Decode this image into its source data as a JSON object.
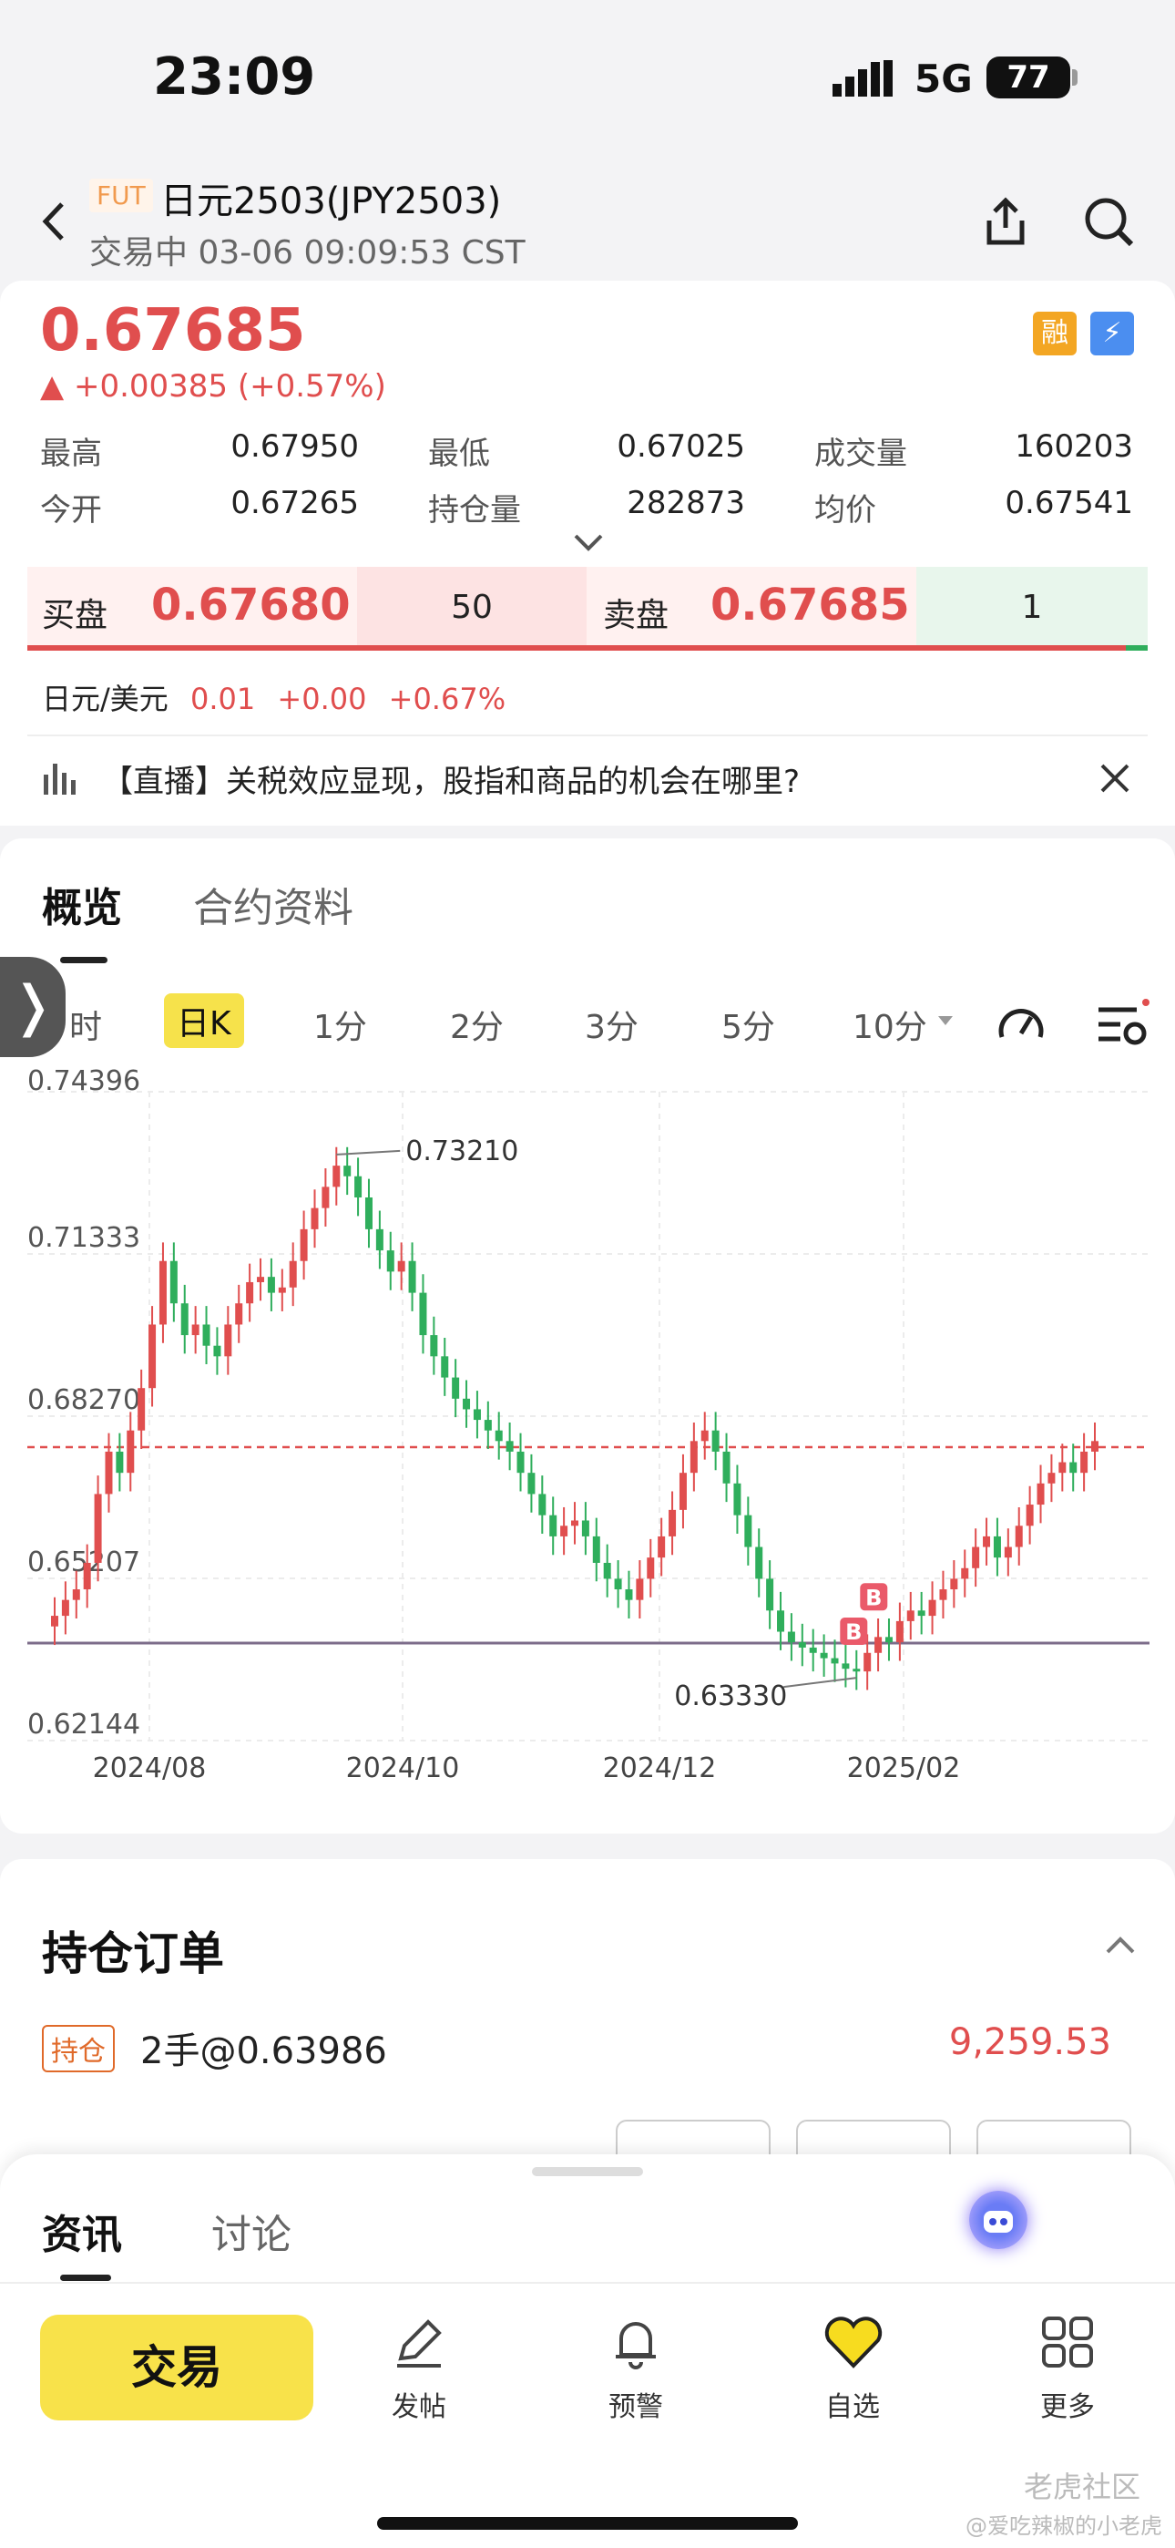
{
  "status": {
    "time": "23:09",
    "network": "5G",
    "battery": "77"
  },
  "header": {
    "badge": "FUT",
    "title": "日元2503(JPY2503)",
    "subtitle": "交易中 03-06 09:09:53 CST"
  },
  "quote": {
    "price": "0.67685",
    "change": "▲ +0.00385 (+0.57%)",
    "badge_margin": "融",
    "badge_level": "⚡",
    "stats": [
      {
        "label": "最高",
        "value": "0.67950"
      },
      {
        "label": "最低",
        "value": "0.67025"
      },
      {
        "label": "成交量",
        "value": "160203"
      },
      {
        "label": "今开",
        "value": "0.67265"
      },
      {
        "label": "持仓量",
        "value": "282873"
      },
      {
        "label": "均价",
        "value": "0.67541"
      }
    ]
  },
  "orderbook": {
    "bid_label": "买盘",
    "bid_price": "0.67680",
    "bid_qty": "50",
    "ask_label": "卖盘",
    "ask_price": "0.67685",
    "ask_qty": "1"
  },
  "related": {
    "name": "日元/美元",
    "price": "0.01",
    "change": "+0.00",
    "pct": "+0.67%"
  },
  "news": {
    "text": "【直播】关税效应显现，股指和商品的机会在哪里?"
  },
  "tabs": {
    "overview": "概览",
    "contract": "合约资料"
  },
  "periods": [
    "时",
    "日K",
    "1分",
    "2分",
    "3分",
    "5分",
    "10分"
  ],
  "chart_data": {
    "type": "candlestick",
    "title": "",
    "y_ticks": [
      "0.74396",
      "0.71333",
      "0.68270",
      "0.65207",
      "0.62144"
    ],
    "x_ticks": [
      "2024/08",
      "2024/10",
      "2024/12",
      "2025/02"
    ],
    "ylim": [
      0.62144,
      0.74396
    ],
    "annotations": {
      "high": "0.73210",
      "low": "0.63330"
    },
    "current_price_line": 0.67685,
    "position_line": 0.63986,
    "markers": [
      "B",
      "B"
    ],
    "close_series": [
      0.645,
      0.648,
      0.65,
      0.655,
      0.668,
      0.676,
      0.672,
      0.68,
      0.688,
      0.7,
      0.712,
      0.704,
      0.698,
      0.7,
      0.696,
      0.694,
      0.7,
      0.704,
      0.708,
      0.709,
      0.706,
      0.707,
      0.712,
      0.718,
      0.722,
      0.726,
      0.73,
      0.728,
      0.724,
      0.718,
      0.714,
      0.71,
      0.712,
      0.706,
      0.698,
      0.694,
      0.69,
      0.686,
      0.684,
      0.682,
      0.68,
      0.678,
      0.676,
      0.672,
      0.668,
      0.664,
      0.66,
      0.662,
      0.663,
      0.66,
      0.655,
      0.652,
      0.65,
      0.648,
      0.652,
      0.656,
      0.66,
      0.665,
      0.672,
      0.678,
      0.68,
      0.676,
      0.67,
      0.664,
      0.658,
      0.652,
      0.646,
      0.642,
      0.64,
      0.639,
      0.638,
      0.637,
      0.636,
      0.635,
      0.6345,
      0.638,
      0.641,
      0.64,
      0.644,
      0.646,
      0.645,
      0.648,
      0.65,
      0.652,
      0.654,
      0.658,
      0.66,
      0.656,
      0.658,
      0.662,
      0.666,
      0.67,
      0.672,
      0.674,
      0.672,
      0.676,
      0.678
    ]
  },
  "position": {
    "title": "持仓订单",
    "tag": "持仓",
    "detail": "2手@0.63986",
    "pnl": "9,259.53"
  },
  "bottom_tabs": {
    "news": "资讯",
    "discuss": "讨论"
  },
  "bottom_nav": {
    "trade": "交易",
    "post": "发帖",
    "alert": "预警",
    "watch": "自选",
    "more": "更多"
  },
  "watermark": {
    "brand": "老虎社区",
    "user": "@爱吃辣椒的小老虎"
  }
}
